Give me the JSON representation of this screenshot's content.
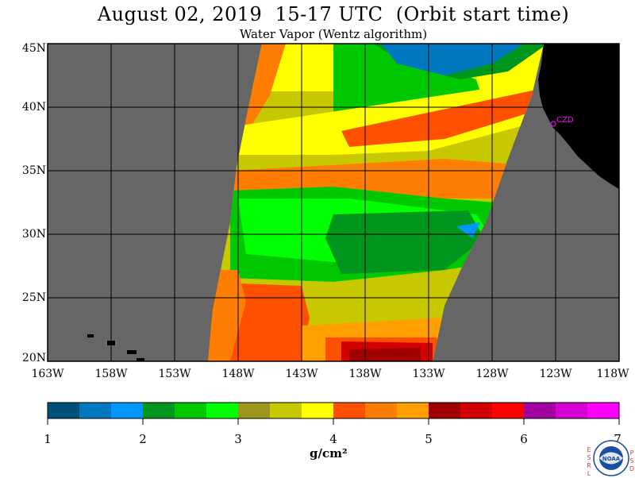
{
  "title": "August 02, 2019  15-17 UTC  (Orbit start time)",
  "subtitle": "Water Vapor (Wentz algorithm)",
  "lat_labels": [
    "45N",
    "40N",
    "35N",
    "30N",
    "25N",
    "20N"
  ],
  "lon_labels": [
    "163W",
    "158W",
    "153W",
    "148W",
    "143W",
    "138W",
    "133W",
    "128W",
    "123W",
    "118W"
  ],
  "station": "CZD",
  "colorbar": {
    "ticks": [
      "1",
      "2",
      "3",
      "4",
      "5",
      "6",
      "7"
    ],
    "units": "g/cm²",
    "colors": [
      "#00507c",
      "#0078c0",
      "#0096ff",
      "#00961e",
      "#00c800",
      "#00ff00",
      "#9c961e",
      "#c8c800",
      "#ffff00",
      "#ff5000",
      "#ff7d00",
      "#ffa000",
      "#a00000",
      "#d20000",
      "#ff0000",
      "#a000a0",
      "#d200d2",
      "#ff00ff"
    ]
  },
  "logo": {
    "left_letters": [
      "E",
      "S",
      "R",
      "L"
    ],
    "right_letters": [
      "P",
      "S",
      "D"
    ],
    "center": "NOAA"
  },
  "colors": {
    "land": "#000000",
    "nodata": "#666666",
    "grid": "#000000"
  }
}
